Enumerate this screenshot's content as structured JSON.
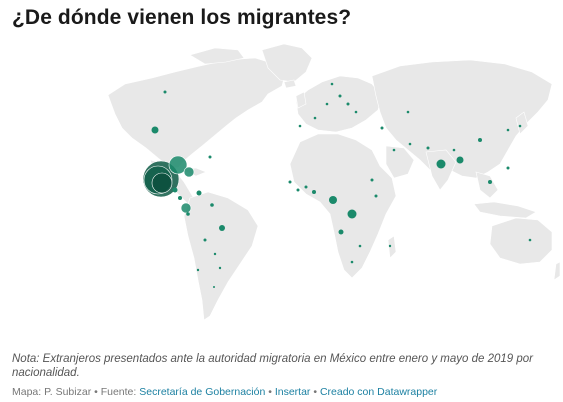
{
  "title": "¿De dónde vienen los migrantes?",
  "note": "Nota: Extranjeros presentados ante la autoridad migratoria en México entre enero y mayo de 2019 por nacionalidad.",
  "footer": {
    "credit": "Mapa: P. Subizar",
    "sep": " • ",
    "source_label": "Fuente: ",
    "source_link": "Secretaría de Gobernación",
    "embed_link": "Insertar",
    "created_link": "Creado con Datawrapper"
  },
  "colors": {
    "land": "#e8e8e8",
    "bubble": "#1b8a6b",
    "bubble_dark": "#0f5c47"
  },
  "map_data": {
    "type": "proportional-symbol",
    "symbols": [
      {
        "region": "Honduras",
        "size": 100
      },
      {
        "region": "Guatemala",
        "size": 62
      },
      {
        "region": "El Salvador",
        "size": 40
      },
      {
        "region": "Cuba",
        "size": 34
      },
      {
        "region": "Haití",
        "size": 9
      },
      {
        "region": "Estados Unidos",
        "size": 2.5
      },
      {
        "region": "Nicaragua",
        "size": 12
      },
      {
        "region": "Ecuador",
        "size": 2
      },
      {
        "region": "Colombia",
        "size": 1.5
      },
      {
        "region": "Venezuela",
        "size": 1.5
      },
      {
        "region": "Brasil",
        "size": 2
      },
      {
        "region": "Perú",
        "size": 1
      },
      {
        "region": "India",
        "size": 4
      },
      {
        "region": "Bangladés",
        "size": 3
      },
      {
        "region": "China",
        "size": 1.5
      },
      {
        "region": "Camerún",
        "size": 4
      },
      {
        "region": "Congo",
        "size": 5
      },
      {
        "region": "Angola",
        "size": 1.5
      },
      {
        "region": "Ghana",
        "size": 1.5
      },
      {
        "region": "Otros",
        "size": 0.3
      }
    ]
  }
}
